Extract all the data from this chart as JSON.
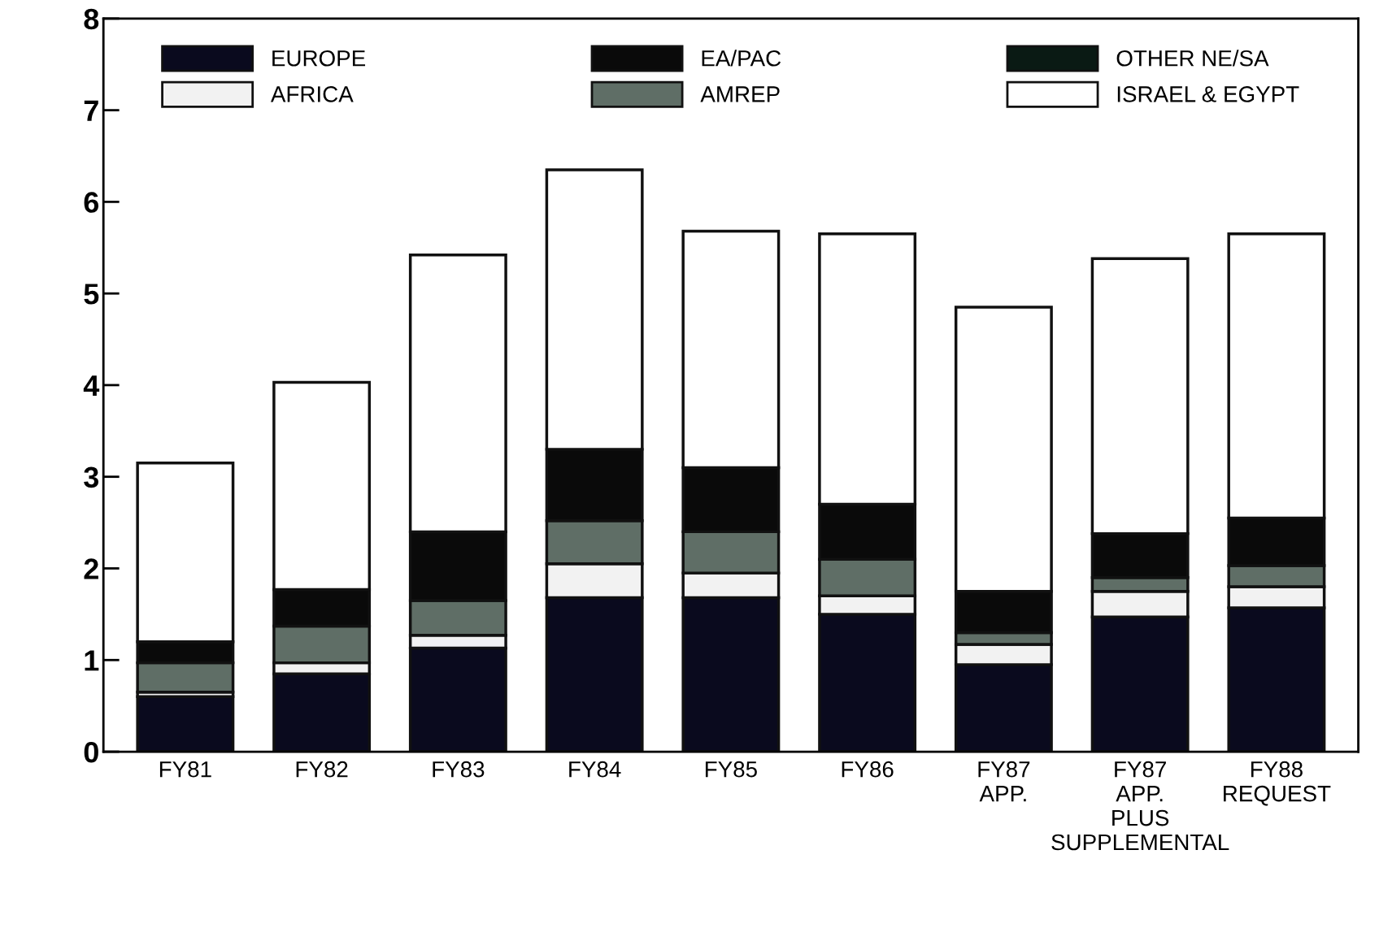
{
  "chart_data": {
    "type": "bar",
    "stacked": true,
    "categories": [
      "FY81",
      "FY82",
      "FY83",
      "FY84",
      "FY85",
      "FY86",
      "FY87\nAPP.",
      "FY87\nAPP.\nPLUS\nSUPPLEMENTAL",
      "FY88\nREQUEST"
    ],
    "series": [
      {
        "name": "EUROPE",
        "color": "#0a0a1e",
        "values": [
          0.6,
          0.85,
          1.13,
          1.68,
          1.68,
          1.5,
          0.95,
          1.47,
          1.57
        ]
      },
      {
        "name": "AFRICA",
        "color": "#f2f2f2",
        "values": [
          0.05,
          0.12,
          0.14,
          0.37,
          0.27,
          0.2,
          0.22,
          0.28,
          0.23
        ]
      },
      {
        "name": "AMREP",
        "color": "#5f6e66",
        "values": [
          0.32,
          0.4,
          0.38,
          0.47,
          0.45,
          0.4,
          0.13,
          0.15,
          0.23
        ]
      },
      {
        "name": "EA/PAC",
        "color": "#0a0a0a",
        "values": [
          0.23,
          0.4,
          0.75,
          0.78,
          0.7,
          0.6,
          0.45,
          0.48,
          0.52
        ]
      },
      {
        "name": "OTHER NE/SA",
        "color": "#0a1a14",
        "values": [
          null,
          null,
          null,
          null,
          null,
          null,
          null,
          null,
          null
        ]
      },
      {
        "name": "ISRAEL & EGYPT",
        "color": "#ffffff",
        "values": [
          1.95,
          2.26,
          3.02,
          3.05,
          2.58,
          2.95,
          3.1,
          3.0,
          3.1
        ]
      }
    ],
    "ylim": [
      0,
      8
    ],
    "yticks": [
      0,
      1,
      2,
      3,
      4,
      5,
      6,
      7,
      8
    ],
    "grid": false,
    "legend": "top"
  }
}
